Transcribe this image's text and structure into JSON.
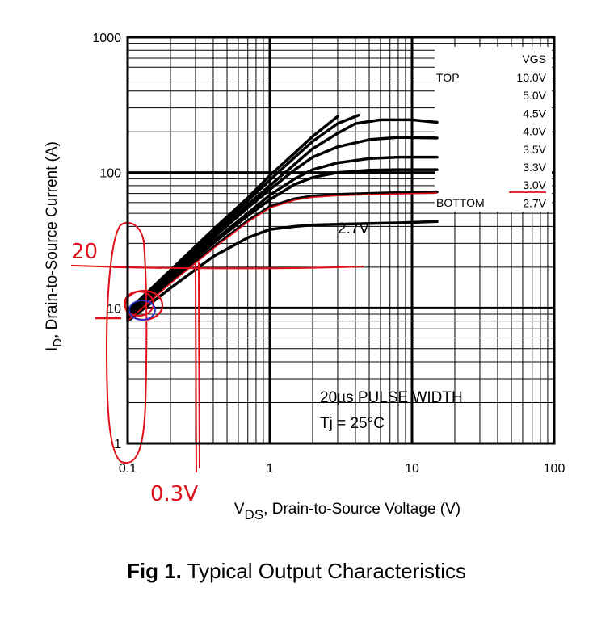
{
  "chart_data": {
    "type": "line",
    "x_scale": "log",
    "y_scale": "log",
    "xlim": [
      0.1,
      100
    ],
    "ylim": [
      1,
      1000
    ],
    "grid": true,
    "xlabel_main": "V",
    "xlabel_sub": "DS",
    "xlabel_rest": ", Drain-to-Source Voltage (V)",
    "ylabel_main": "I",
    "ylabel_sub": "D",
    "ylabel_rest": ", Drain-to-Source Current (A)",
    "x_ticks": [
      {
        "v": 0.1,
        "label": "0.1"
      },
      {
        "v": 1,
        "label": "1"
      },
      {
        "v": 10,
        "label": "10"
      },
      {
        "v": 100,
        "label": "100"
      }
    ],
    "y_ticks": [
      {
        "v": 1,
        "label": "1"
      },
      {
        "v": 10,
        "label": "10"
      },
      {
        "v": 100,
        "label": "100"
      },
      {
        "v": 1000,
        "label": "1000"
      }
    ],
    "legend": {
      "position": "top-right",
      "header": "VGS",
      "top_label": "TOP",
      "bottom_label": "BOTTOM",
      "entries": [
        "10.0V",
        "5.0V",
        "4.5V",
        "4.0V",
        "3.5V",
        "3.3V",
        "3.0V",
        "2.7V"
      ]
    },
    "series": [
      {
        "name": "10.0V",
        "x": [
          0.1,
          0.2,
          0.4,
          0.7,
          1,
          1.5,
          2,
          3
        ],
        "y": [
          9.5,
          19,
          38,
          65,
          95,
          140,
          185,
          260
        ]
      },
      {
        "name": "5.0V",
        "x": [
          0.1,
          0.2,
          0.4,
          0.7,
          1,
          1.5,
          2,
          3,
          4.2
        ],
        "y": [
          9.2,
          18,
          36,
          62,
          88,
          130,
          170,
          230,
          265
        ]
      },
      {
        "name": "4.5V",
        "x": [
          0.1,
          0.2,
          0.4,
          0.7,
          1,
          2,
          3,
          4,
          6,
          10,
          15
        ],
        "y": [
          9,
          17.5,
          34,
          58,
          80,
          150,
          195,
          230,
          245,
          245,
          235
        ]
      },
      {
        "name": "4.0V",
        "x": [
          0.1,
          0.2,
          0.4,
          0.7,
          1,
          1.5,
          2,
          3,
          5,
          8,
          15
        ],
        "y": [
          8.8,
          17,
          33,
          55,
          75,
          105,
          130,
          155,
          175,
          182,
          180
        ]
      },
      {
        "name": "3.5V",
        "x": [
          0.1,
          0.2,
          0.4,
          0.7,
          1,
          1.5,
          2,
          3,
          5,
          8,
          15
        ],
        "y": [
          8.6,
          16.5,
          31,
          50,
          68,
          90,
          105,
          118,
          127,
          130,
          130
        ]
      },
      {
        "name": "3.3V",
        "x": [
          0.1,
          0.2,
          0.4,
          0.7,
          1,
          1.5,
          2,
          3,
          5,
          8,
          15
        ],
        "y": [
          8.4,
          16,
          30,
          48,
          63,
          82,
          92,
          100,
          104,
          105,
          105
        ]
      },
      {
        "name": "3.0V",
        "x": [
          0.1,
          0.2,
          0.4,
          0.7,
          1,
          1.5,
          2,
          3,
          5,
          8,
          15
        ],
        "y": [
          8.2,
          15.5,
          28,
          44,
          56,
          64,
          67,
          69,
          70,
          71,
          72
        ]
      },
      {
        "name": "2.7V",
        "x": [
          0.1,
          0.2,
          0.4,
          0.7,
          1,
          1.5,
          2,
          3,
          5,
          8,
          15
        ],
        "y": [
          8,
          14,
          24,
          33,
          38,
          40,
          41,
          41.5,
          42,
          42.5,
          43.5
        ]
      }
    ],
    "annotations": [
      {
        "text": "2.7V"
      },
      {
        "text": "20µs PULSE WIDTH"
      },
      {
        "text": "Tj = 25°C"
      }
    ],
    "handwritten": {
      "y_value": "20",
      "x_value": "0.3V",
      "color": "#e0101a",
      "pen_blue": "#2030d0",
      "ref_x": 0.3,
      "ref_y": 20
    }
  },
  "caption": {
    "bold": "Fig 1.",
    "text": "Typical Output Characteristics"
  }
}
